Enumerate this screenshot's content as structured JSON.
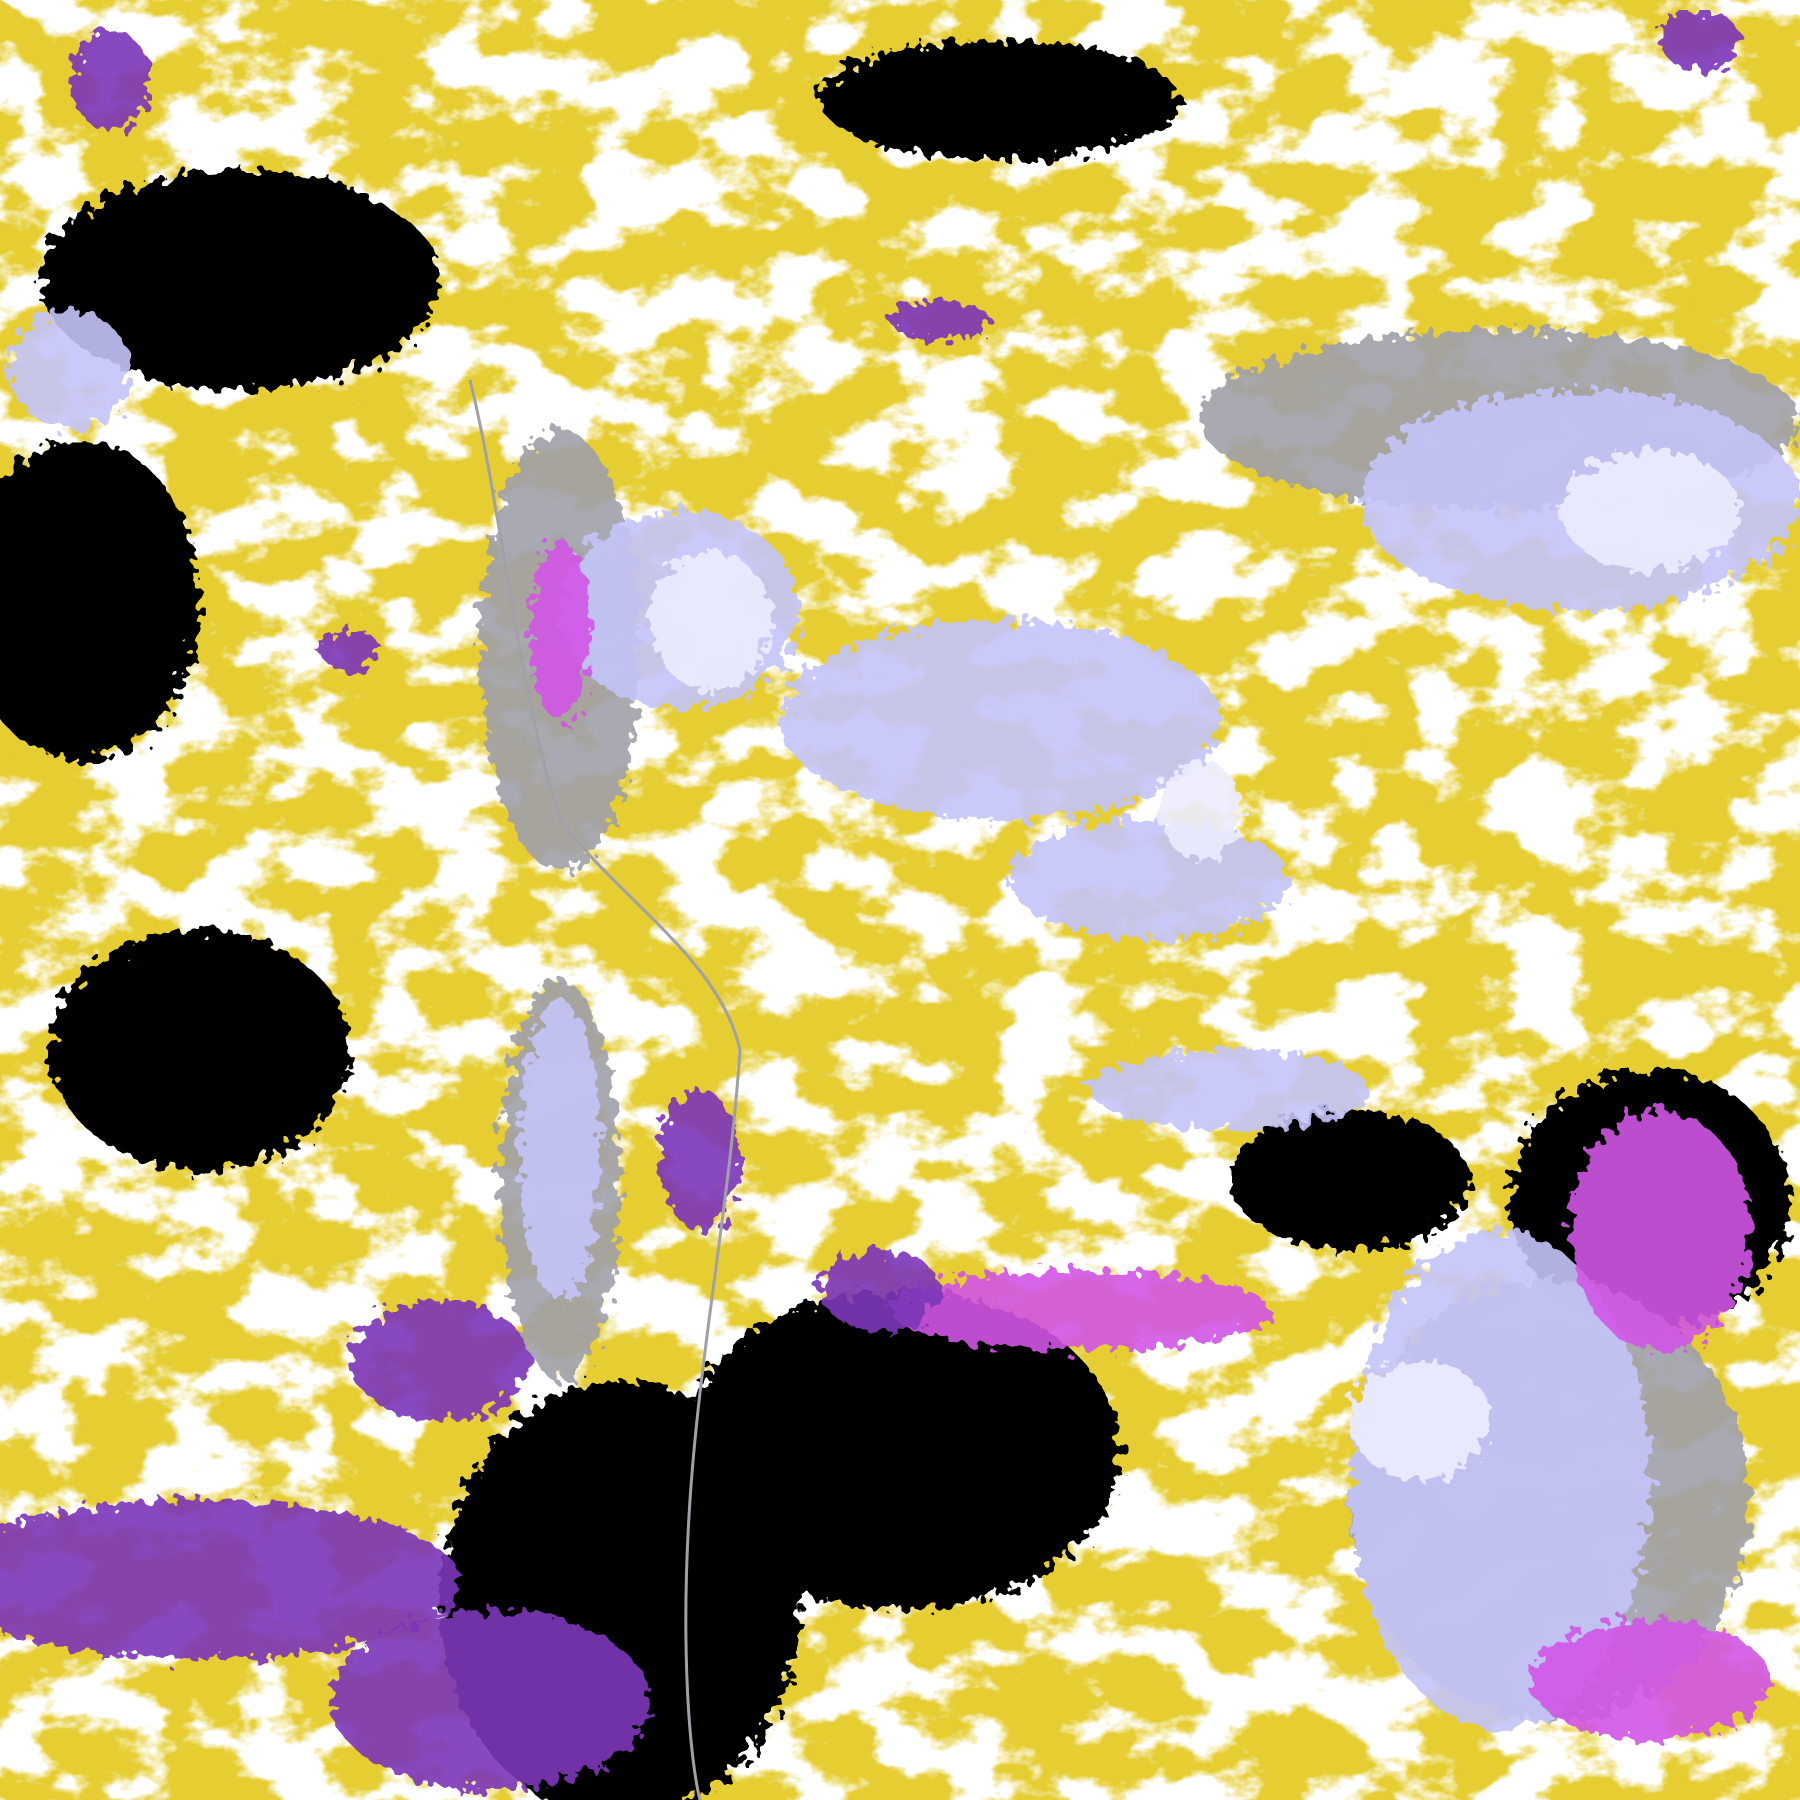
{
  "map": {
    "palette": {
      "background": "#ffffff",
      "gold": "#c89b08",
      "dark_gold": "#b08400",
      "purple": "#7b35b8",
      "magenta": "#d255e6",
      "lavender": "#c4c4fa",
      "pale_lavender": "#ececff",
      "gray": "#a0a0a8"
    }
  }
}
